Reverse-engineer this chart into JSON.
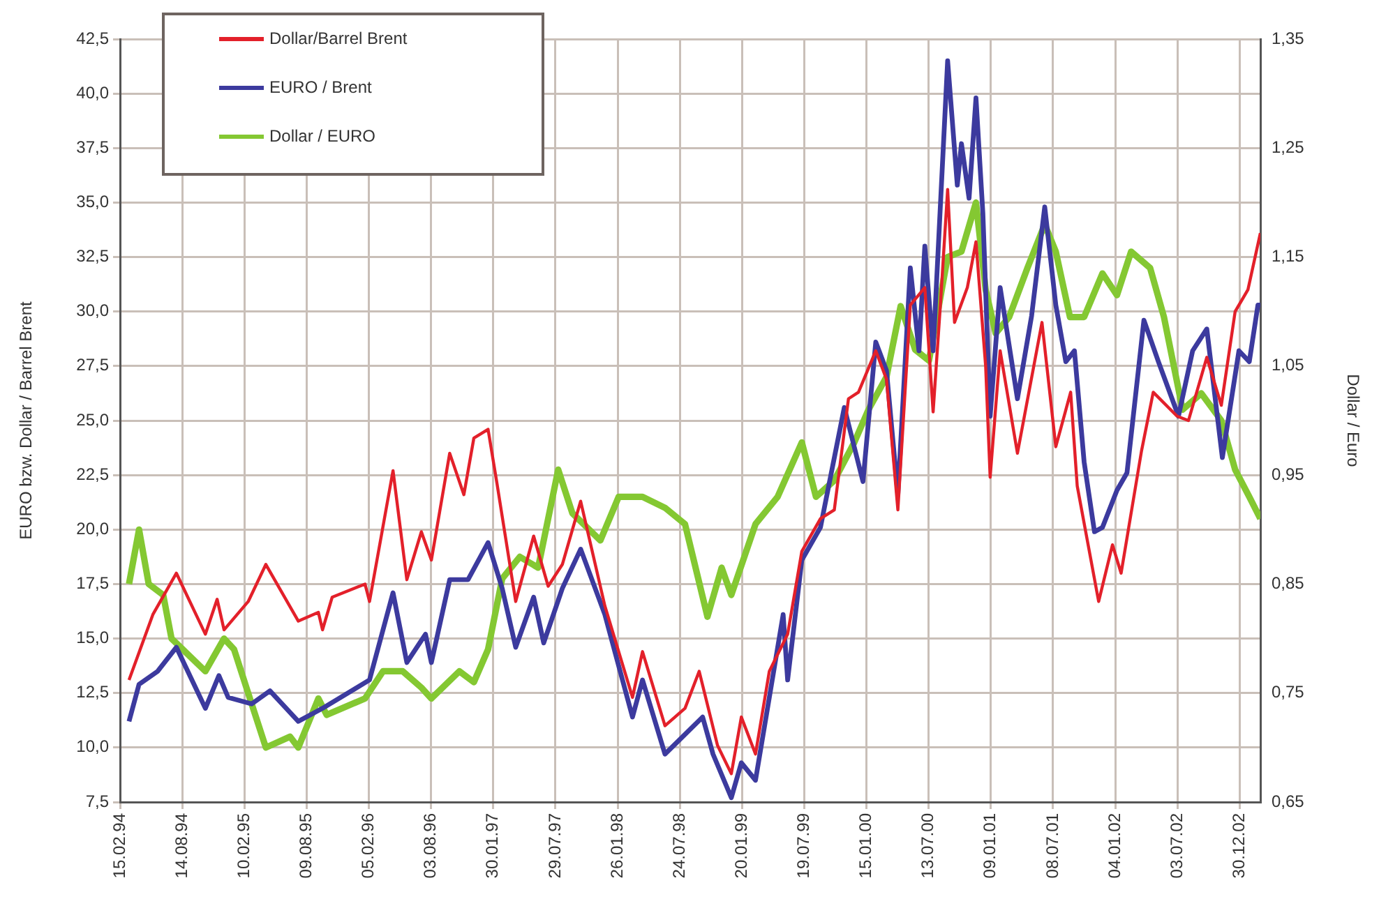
{
  "chart_data": {
    "type": "line",
    "ylabel": "EURO bzw. Dollar / Barrel Brent",
    "y2label": "Dollar / Euro",
    "legend": "top left",
    "grid": true,
    "marker": "none",
    "line_style": "solid",
    "xlim": [
      "1994-02-15",
      "2003-02-28"
    ],
    "xticks": [
      {
        "value": "1994-02-15",
        "label": "15.02.94"
      },
      {
        "value": "1994-08-14",
        "label": "14.08.94"
      },
      {
        "value": "1995-02-10",
        "label": "10.02.95"
      },
      {
        "value": "1995-08-09",
        "label": "09.08.95"
      },
      {
        "value": "1996-02-05",
        "label": "05.02.96"
      },
      {
        "value": "1996-08-03",
        "label": "03.08.96"
      },
      {
        "value": "1997-01-30",
        "label": "30.01.97"
      },
      {
        "value": "1997-07-29",
        "label": "29.07.97"
      },
      {
        "value": "1998-01-26",
        "label": "26.01.98"
      },
      {
        "value": "1998-07-24",
        "label": "24.07.98"
      },
      {
        "value": "1999-01-20",
        "label": "20.01.99"
      },
      {
        "value": "1999-07-19",
        "label": "19.07.99"
      },
      {
        "value": "2000-01-15",
        "label": "15.01.00"
      },
      {
        "value": "2000-07-13",
        "label": "13.07.00"
      },
      {
        "value": "2001-01-09",
        "label": "09.01.01"
      },
      {
        "value": "2001-07-08",
        "label": "08.07.01"
      },
      {
        "value": "2002-01-04",
        "label": "04.01.02"
      },
      {
        "value": "2002-07-03",
        "label": "03.07.02"
      },
      {
        "value": "2002-12-30",
        "label": "30.12.02"
      }
    ],
    "ylim": [
      7.5,
      42.5
    ],
    "yticks": [
      {
        "value": 7.5,
        "label": "7,5"
      },
      {
        "value": 10,
        "label": "10,0"
      },
      {
        "value": 12.5,
        "label": "12,5"
      },
      {
        "value": 15,
        "label": "15,0"
      },
      {
        "value": 17.5,
        "label": "17,5"
      },
      {
        "value": 20,
        "label": "20,0"
      },
      {
        "value": 22.5,
        "label": "22,5"
      },
      {
        "value": 25,
        "label": "25,0"
      },
      {
        "value": 27.5,
        "label": "27,5"
      },
      {
        "value": 30,
        "label": "30,0"
      },
      {
        "value": 32.5,
        "label": "32,5"
      },
      {
        "value": 35,
        "label": "35,0"
      },
      {
        "value": 37.5,
        "label": "37,5"
      },
      {
        "value": 40,
        "label": "40,0"
      },
      {
        "value": 42.5,
        "label": "42,5"
      }
    ],
    "y2lim": [
      0.65,
      1.35
    ],
    "y2ticks": [
      {
        "value": 0.65,
        "label": "0,65"
      },
      {
        "value": 0.75,
        "label": "0,75"
      },
      {
        "value": 0.85,
        "label": "0,85"
      },
      {
        "value": 0.95,
        "label": "0,95"
      },
      {
        "value": 1.05,
        "label": "1,05"
      },
      {
        "value": 1.15,
        "label": "1,15"
      },
      {
        "value": 1.25,
        "label": "1,25"
      },
      {
        "value": 1.35,
        "label": "1,35"
      }
    ],
    "series": [
      {
        "name": "Dollar/Barrel Brent",
        "color": "#e3202a",
        "x": [
          "1994-03-13",
          "1994-05-21",
          "1994-07-28",
          "1994-10-20",
          "1994-11-23",
          "1994-12-13",
          "1995-02-21",
          "1995-04-13",
          "1995-07-16",
          "1995-09-12",
          "1995-09-24",
          "1995-10-22",
          "1996-01-25",
          "1996-02-07",
          "1996-04-15",
          "1996-05-25",
          "1996-07-06",
          "1996-08-04",
          "1996-09-26",
          "1996-11-06",
          "1996-12-05",
          "1997-01-15",
          "1997-02-09",
          "1997-04-05",
          "1997-05-27",
          "1997-07-08",
          "1997-08-18",
          "1997-10-10",
          "1997-12-19",
          "1998-03-09",
          "1998-04-07",
          "1998-06-11",
          "1998-08-08",
          "1998-09-18",
          "1998-11-10",
          "1998-12-20",
          "1999-01-18",
          "1999-02-28",
          "1999-04-09",
          "1999-06-01",
          "1999-07-12",
          "1999-09-04",
          "1999-10-14",
          "1999-11-24",
          "1999-12-23",
          "2000-02-11",
          "2000-03-13",
          "2000-04-15",
          "2000-05-21",
          "2000-07-02",
          "2000-07-26",
          "2000-08-16",
          "2000-09-06",
          "2000-09-26",
          "2000-11-02",
          "2000-11-27",
          "2000-12-25",
          "2001-01-07",
          "2001-02-05",
          "2001-03-27",
          "2001-06-06",
          "2001-07-16",
          "2001-08-28",
          "2001-09-16",
          "2001-11-17",
          "2001-12-27",
          "2002-01-21",
          "2002-03-21",
          "2002-04-24",
          "2002-07-02",
          "2002-08-04",
          "2002-09-26",
          "2002-11-07",
          "2002-12-17",
          "2003-01-23",
          "2003-02-28"
        ],
        "values": [
          13.1,
          16.1,
          18.0,
          15.2,
          16.8,
          15.4,
          16.7,
          18.4,
          15.8,
          16.2,
          15.4,
          16.9,
          17.5,
          16.7,
          22.7,
          17.7,
          19.9,
          18.6,
          23.5,
          21.6,
          24.2,
          24.6,
          22.2,
          16.7,
          19.7,
          17.4,
          18.4,
          21.3,
          16.5,
          12.3,
          14.4,
          11.0,
          11.8,
          13.5,
          10.1,
          8.8,
          11.4,
          9.7,
          13.5,
          15.2,
          19.0,
          20.5,
          20.9,
          26.0,
          26.3,
          28.2,
          26.9,
          20.9,
          30.3,
          31.1,
          25.4,
          30.3,
          35.6,
          29.5,
          31.1,
          33.2,
          27.5,
          22.4,
          28.2,
          23.5,
          29.5,
          23.8,
          26.3,
          22.0,
          16.7,
          19.3,
          18.0,
          23.6,
          26.3,
          25.2,
          25.0,
          27.9,
          25.7,
          30.0,
          31.0,
          33.6
        ]
      },
      {
        "name": "EURO / Brent",
        "color": "#3c3a9e",
        "x": [
          "1994-03-13",
          "1994-04-11",
          "1994-06-04",
          "1994-07-28",
          "1994-10-20",
          "1994-11-28",
          "1994-12-25",
          "1995-03-03",
          "1995-04-25",
          "1995-07-16",
          "1995-09-24",
          "1996-02-07",
          "1996-04-15",
          "1996-05-25",
          "1996-07-18",
          "1996-08-04",
          "1996-09-26",
          "1996-11-18",
          "1997-01-15",
          "1997-02-25",
          "1997-04-05",
          "1997-05-27",
          "1997-06-25",
          "1997-08-18",
          "1997-10-10",
          "1997-12-19",
          "1998-03-09",
          "1998-04-07",
          "1998-06-11",
          "1998-09-28",
          "1998-10-28",
          "1998-12-20",
          "1999-01-18",
          "1999-02-28",
          "1999-04-09",
          "1999-05-19",
          "1999-06-01",
          "1999-07-12",
          "1999-09-04",
          "1999-11-12",
          "2000-01-05",
          "2000-02-11",
          "2000-03-13",
          "2000-04-15",
          "2000-05-21",
          "2000-06-15",
          "2000-07-02",
          "2000-07-26",
          "2000-09-06",
          "2000-10-04",
          "2000-10-16",
          "2000-11-07",
          "2000-11-27",
          "2000-12-17",
          "2001-01-07",
          "2001-02-05",
          "2001-03-27",
          "2001-05-07",
          "2001-06-14",
          "2001-07-16",
          "2001-08-14",
          "2001-09-08",
          "2001-10-06",
          "2001-11-05",
          "2001-11-28",
          "2002-01-09",
          "2002-02-07",
          "2002-03-28",
          "2002-05-09",
          "2002-07-06",
          "2002-08-16",
          "2002-09-26",
          "2002-11-10",
          "2002-12-28",
          "2003-01-27",
          "2003-02-21",
          "2003-02-28"
        ],
        "values": [
          11.2,
          12.9,
          13.5,
          14.6,
          11.8,
          13.3,
          12.3,
          12.0,
          12.6,
          11.2,
          11.8,
          13.1,
          17.1,
          13.9,
          15.2,
          13.9,
          17.7,
          17.7,
          19.4,
          17.3,
          14.6,
          16.9,
          14.8,
          17.3,
          19.1,
          16.1,
          11.4,
          13.1,
          9.7,
          11.4,
          9.7,
          7.7,
          9.3,
          8.5,
          12.3,
          16.1,
          13.1,
          18.6,
          20.1,
          25.6,
          22.2,
          28.6,
          27.3,
          21.6,
          32.0,
          28.2,
          33.0,
          28.2,
          41.5,
          35.8,
          37.7,
          35.2,
          39.8,
          34.5,
          25.2,
          31.1,
          26.0,
          29.8,
          34.8,
          30.3,
          27.7,
          28.2,
          23.1,
          19.9,
          20.1,
          21.8,
          22.6,
          29.6,
          27.7,
          25.2,
          28.2,
          29.2,
          23.3,
          28.2,
          27.7,
          30.3,
          30.3
        ]
      },
      {
        "name": "Dollar / EURO",
        "color": "#84c832",
        "axis": "y2",
        "x": [
          "1994-03-13",
          "1994-04-11",
          "1994-05-09",
          "1994-06-20",
          "1994-07-14",
          "1994-10-20",
          "1994-12-13",
          "1995-01-11",
          "1995-03-03",
          "1995-04-13",
          "1995-06-22",
          "1995-07-16",
          "1995-09-12",
          "1995-10-06",
          "1996-01-25",
          "1996-03-17",
          "1996-05-13",
          "1996-07-06",
          "1996-08-04",
          "1996-10-24",
          "1996-12-05",
          "1997-01-15",
          "1997-02-25",
          "1997-04-17",
          "1997-06-09",
          "1997-08-06",
          "1997-09-16",
          "1997-12-06",
          "1998-01-28",
          "1998-04-07",
          "1998-06-11",
          "1998-08-08",
          "1998-10-12",
          "1998-11-22",
          "1998-12-20",
          "1999-02-28",
          "1999-05-03",
          "1999-07-12",
          "1999-08-22",
          "1999-10-14",
          "1999-12-11",
          "2000-01-21",
          "2000-03-13",
          "2000-04-23",
          "2000-06-04",
          "2000-07-14",
          "2000-09-06",
          "2000-10-16",
          "2000-11-27",
          "2000-12-25",
          "2001-01-23",
          "2001-03-03",
          "2001-04-25",
          "2001-06-14",
          "2001-07-16",
          "2001-08-26",
          "2001-10-06",
          "2001-11-28",
          "2002-01-09",
          "2002-02-19",
          "2002-04-15",
          "2002-05-25",
          "2002-07-18",
          "2002-09-10",
          "2002-11-07",
          "2002-12-17",
          "2003-01-27",
          "2003-02-28"
        ],
        "values": [
          0.85,
          0.9,
          0.85,
          0.84,
          0.8,
          0.77,
          0.8,
          0.79,
          0.74,
          0.7,
          0.71,
          0.7,
          0.745,
          0.73,
          0.745,
          0.77,
          0.77,
          0.755,
          0.745,
          0.77,
          0.76,
          0.79,
          0.855,
          0.875,
          0.865,
          0.955,
          0.915,
          0.89,
          0.93,
          0.93,
          0.92,
          0.905,
          0.82,
          0.865,
          0.84,
          0.905,
          0.93,
          0.98,
          0.93,
          0.945,
          0.98,
          1.01,
          1.04,
          1.105,
          1.065,
          1.055,
          1.15,
          1.155,
          1.2,
          1.12,
          1.08,
          1.095,
          1.14,
          1.18,
          1.155,
          1.095,
          1.095,
          1.135,
          1.115,
          1.155,
          1.14,
          1.095,
          1.01,
          1.025,
          1.0,
          0.955,
          0.93,
          0.91
        ]
      }
    ]
  }
}
